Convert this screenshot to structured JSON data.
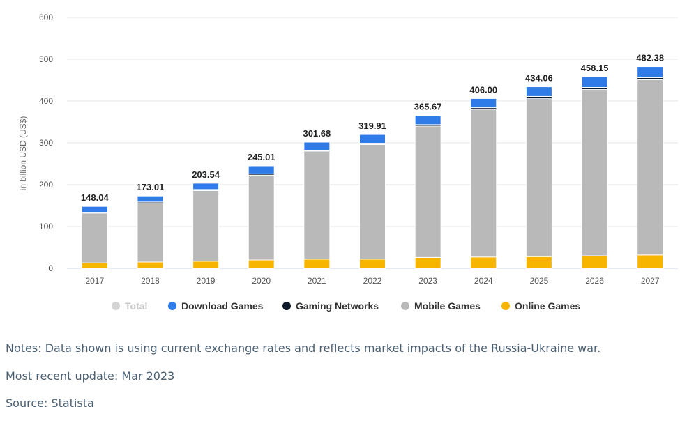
{
  "chart_data": {
    "type": "bar",
    "stacked": true,
    "ylabel": "in billion USD (US$)",
    "ylim": [
      0,
      600
    ],
    "yticks": [
      0,
      100,
      200,
      300,
      400,
      500,
      600
    ],
    "grid": true,
    "legend_position": "bottom",
    "categories": [
      "2017",
      "2018",
      "2019",
      "2020",
      "2021",
      "2022",
      "2023",
      "2024",
      "2025",
      "2026",
      "2027"
    ],
    "total_labels": [
      "148.04",
      "173.01",
      "203.54",
      "245.01",
      "301.68",
      "319.91",
      "365.67",
      "406.00",
      "434.06",
      "458.15",
      "482.38"
    ],
    "totals": [
      148.04,
      173.01,
      203.54,
      245.01,
      301.68,
      319.91,
      365.67,
      406.0,
      434.06,
      458.15,
      482.38
    ],
    "series": [
      {
        "name": "Online Games",
        "color": "#f7b500",
        "values": [
          13,
          15,
          17,
          20,
          22,
          22,
          26,
          27,
          28,
          30,
          32
        ]
      },
      {
        "name": "Mobile Games",
        "color": "#b9b9b9",
        "values": [
          119,
          141,
          169,
          203,
          258,
          274,
          314,
          353,
          379,
          398,
          419
        ]
      },
      {
        "name": "Gaming Networks",
        "color": "#0d1b2a",
        "values": [
          2,
          2.5,
          2.5,
          3,
          2.5,
          3,
          3.5,
          4,
          4,
          4.5,
          5
        ]
      },
      {
        "name": "Download Games",
        "color": "#2f7be8",
        "values": [
          14.04,
          14.51,
          15.04,
          19.01,
          19.18,
          20.91,
          22.17,
          22.0,
          23.06,
          25.65,
          26.38
        ]
      }
    ],
    "legend": [
      {
        "name": "Total",
        "color": "#d3d3d3",
        "muted": true
      },
      {
        "name": "Download Games",
        "color": "#2f7be8"
      },
      {
        "name": "Gaming Networks",
        "color": "#0d1b2a"
      },
      {
        "name": "Mobile Games",
        "color": "#b9b9b9"
      },
      {
        "name": "Online Games",
        "color": "#f7b500"
      }
    ]
  },
  "notes": {
    "note": "Notes: Data shown is using current exchange rates and reflects market impacts of the Russia-Ukraine war.",
    "update": "Most recent update: Mar 2023",
    "source": "Source: Statista"
  }
}
